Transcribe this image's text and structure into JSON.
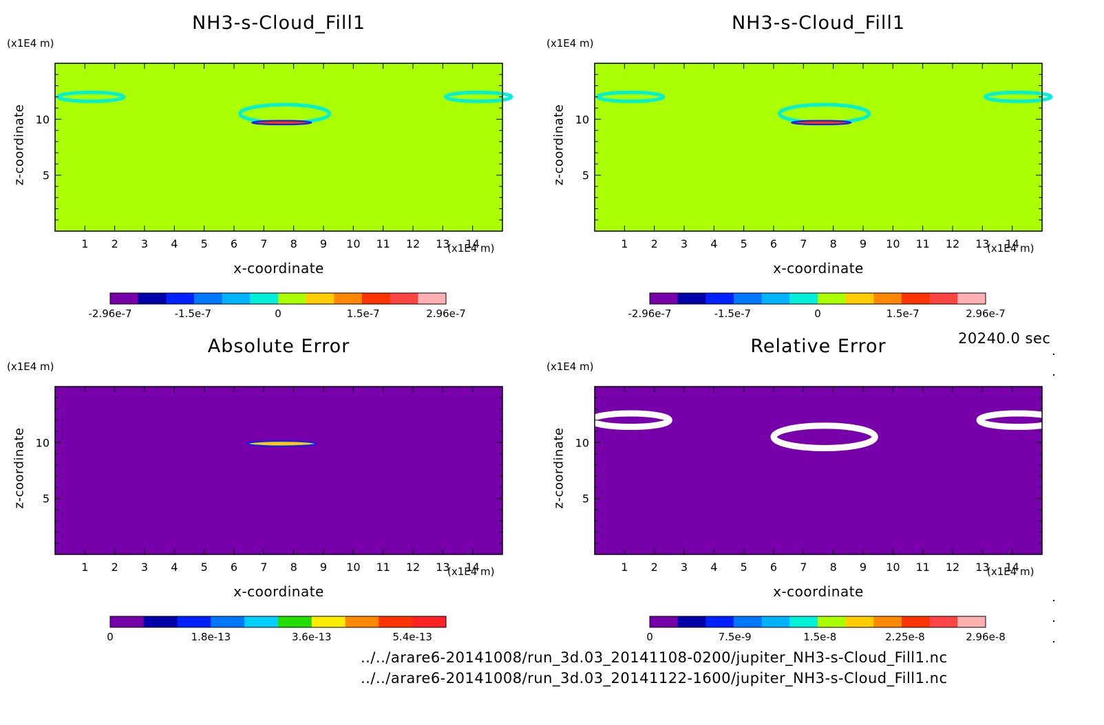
{
  "figure": {
    "timestamp": "20240.0 sec",
    "paths": [
      "../../arare6-20141008/run_3d.03_20141108-0200/jupiter_NH3-s-Cloud_Fill1.nc",
      "../../arare6-20141008/run_3d.03_20141122-1600/jupiter_NH3-s-Cloud_Fill1.nc"
    ]
  },
  "chart_data": [
    {
      "type": "heatmap",
      "title": "NH3-s-Cloud_Fill1",
      "xlabel": "x-coordinate",
      "ylabel": "z-coordinate",
      "x_unit": "(x1E4 m)",
      "y_unit": "(x1E4 m)",
      "xlim": [
        0,
        15
      ],
      "ylim": [
        0,
        15
      ],
      "xticks": [
        "1",
        "2",
        "3",
        "4",
        "5",
        "6",
        "7",
        "8",
        "9",
        "10",
        "11",
        "12",
        "13",
        "14"
      ],
      "yticks": [
        "5",
        "10"
      ],
      "background": "#aaff00",
      "colorbar": {
        "range": [
          -2.96e-07,
          2.96e-07
        ],
        "tick_labels": [
          "-2.96e-7",
          "-1.5e-7",
          "0",
          "1.5e-7",
          "2.96e-7"
        ],
        "colors": [
          "#7700aa",
          "#0000aa",
          "#0022ff",
          "#0077ff",
          "#00b4ff",
          "#00f0d8",
          "#aaff00",
          "#ffcc00",
          "#ff8800",
          "#ff3300",
          "#ff4444",
          "#ffb0b0"
        ]
      },
      "features": [
        {
          "shape": "ring",
          "x_center": 7.7,
          "z_center": 10.5,
          "x_width": 3.0,
          "z_height": 1.6,
          "color": "#00f0d8"
        },
        {
          "shape": "band",
          "x_center": 7.6,
          "z_center": 9.7,
          "x_width": 2.0,
          "z_height": 0.35,
          "color": "#ff3300"
        },
        {
          "shape": "ring",
          "x_center": 1.2,
          "z_center": 12.0,
          "x_width": 2.2,
          "z_height": 0.8,
          "color": "#00f0d8"
        },
        {
          "shape": "ring",
          "x_center": 14.2,
          "z_center": 12.0,
          "x_width": 2.2,
          "z_height": 0.8,
          "color": "#00f0d8"
        }
      ]
    },
    {
      "type": "heatmap",
      "title": "NH3-s-Cloud_Fill1",
      "xlabel": "x-coordinate",
      "ylabel": "z-coordinate",
      "x_unit": "(x1E4 m)",
      "y_unit": "(x1E4 m)",
      "xlim": [
        0,
        15
      ],
      "ylim": [
        0,
        15
      ],
      "xticks": [
        "1",
        "2",
        "3",
        "4",
        "5",
        "6",
        "7",
        "8",
        "9",
        "10",
        "11",
        "12",
        "13",
        "14"
      ],
      "yticks": [
        "5",
        "10"
      ],
      "background": "#aaff00",
      "colorbar": {
        "range": [
          -2.96e-07,
          2.96e-07
        ],
        "tick_labels": [
          "-2.96e-7",
          "-1.5e-7",
          "0",
          "1.5e-7",
          "2.96e-7"
        ],
        "colors": [
          "#7700aa",
          "#0000aa",
          "#0022ff",
          "#0077ff",
          "#00b4ff",
          "#00f0d8",
          "#aaff00",
          "#ffcc00",
          "#ff8800",
          "#ff3300",
          "#ff4444",
          "#ffb0b0"
        ]
      },
      "features": [
        {
          "shape": "ring",
          "x_center": 7.7,
          "z_center": 10.5,
          "x_width": 3.0,
          "z_height": 1.6,
          "color": "#00f0d8"
        },
        {
          "shape": "band",
          "x_center": 7.6,
          "z_center": 9.7,
          "x_width": 2.0,
          "z_height": 0.35,
          "color": "#ff3300"
        },
        {
          "shape": "ring",
          "x_center": 1.2,
          "z_center": 12.0,
          "x_width": 2.2,
          "z_height": 0.8,
          "color": "#00f0d8"
        },
        {
          "shape": "ring",
          "x_center": 14.2,
          "z_center": 12.0,
          "x_width": 2.2,
          "z_height": 0.8,
          "color": "#00f0d8"
        }
      ]
    },
    {
      "type": "heatmap",
      "title": "Absolute Error",
      "xlabel": "x-coordinate",
      "ylabel": "z-coordinate",
      "x_unit": "(x1E4 m)",
      "y_unit": "(x1E4 m)",
      "xlim": [
        0,
        15
      ],
      "ylim": [
        0,
        15
      ],
      "xticks": [
        "1",
        "2",
        "3",
        "4",
        "5",
        "6",
        "7",
        "8",
        "9",
        "10",
        "11",
        "12",
        "13",
        "14"
      ],
      "yticks": [
        "5",
        "10"
      ],
      "background": "#7700aa",
      "colorbar": {
        "range": [
          0,
          6e-13
        ],
        "tick_labels": [
          "0",
          "1.8e-13",
          "3.6e-13",
          "5.4e-13"
        ],
        "tick_values": [
          0,
          1.8e-13,
          3.6e-13,
          5.4e-13
        ],
        "colors": [
          "#7700aa",
          "#0000aa",
          "#0022ff",
          "#0077ff",
          "#00d0ff",
          "#22dd00",
          "#ffee00",
          "#ff8800",
          "#ff3300",
          "#ff2222"
        ]
      },
      "features": [
        {
          "shape": "band",
          "x_center": 7.6,
          "z_center": 9.9,
          "x_width": 2.3,
          "z_height": 0.45,
          "color": "#ffcc00"
        }
      ]
    },
    {
      "type": "heatmap",
      "title": "Relative Error",
      "xlabel": "x-coordinate",
      "ylabel": "z-coordinate",
      "x_unit": "(x1E4 m)",
      "y_unit": "(x1E4 m)",
      "xlim": [
        0,
        15
      ],
      "ylim": [
        0,
        15
      ],
      "xticks": [
        "1",
        "2",
        "3",
        "4",
        "5",
        "6",
        "7",
        "8",
        "9",
        "10",
        "11",
        "12",
        "13",
        "14"
      ],
      "yticks": [
        "5",
        "10"
      ],
      "background": "#7700aa",
      "colorbar": {
        "range": [
          0,
          2.96e-08
        ],
        "tick_labels": [
          "0",
          "7.5e-9",
          "1.5e-8",
          "2.25e-8",
          "2.96e-8"
        ],
        "colors": [
          "#7700aa",
          "#0000aa",
          "#0022ff",
          "#0077ff",
          "#00b4ff",
          "#00f0d8",
          "#aaff00",
          "#ffcc00",
          "#ff8800",
          "#ff3300",
          "#ff4444",
          "#ffb0b0"
        ]
      },
      "features": [
        {
          "shape": "ring",
          "x_center": 7.7,
          "z_center": 10.5,
          "x_width": 3.4,
          "z_height": 2.0,
          "color": "#ffffff"
        },
        {
          "shape": "ring",
          "x_center": 1.2,
          "z_center": 12.0,
          "x_width": 2.6,
          "z_height": 1.2,
          "color": "#ffffff"
        },
        {
          "shape": "ring",
          "x_center": 14.2,
          "z_center": 12.0,
          "x_width": 2.6,
          "z_height": 1.2,
          "color": "#ffffff"
        }
      ]
    }
  ]
}
